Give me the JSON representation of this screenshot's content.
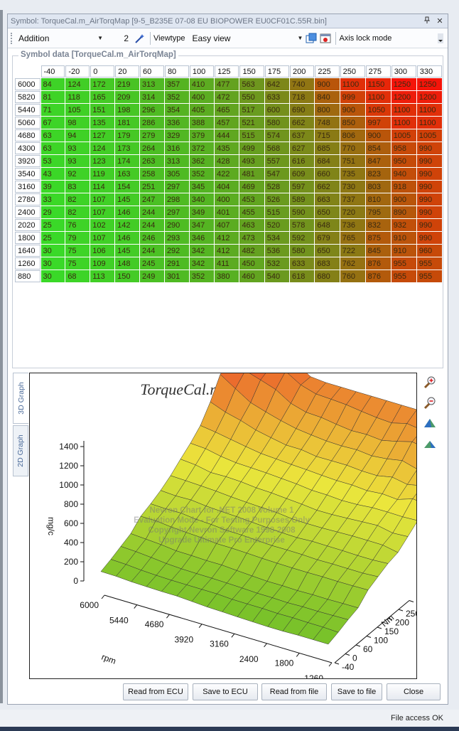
{
  "window": {
    "title": "Symbol: TorqueCal.m_AirTorqMap [9-5_B235E 07-08 EU BIOPOWER EU0CF01C.55R.bin]",
    "pin_icon": "pin-icon",
    "close_label": "✕"
  },
  "toolbar": {
    "mode_value": "Addition",
    "amount_value": "2",
    "viewtype_label": "Viewtype",
    "viewtype_value": "Easy view",
    "axis_lock_label": "Axis lock mode"
  },
  "symbol_data": {
    "legend": "Symbol data [TorqueCal.m_AirTorqMap]",
    "x_axis": [
      "-40",
      "-20",
      "0",
      "20",
      "60",
      "80",
      "100",
      "125",
      "150",
      "175",
      "200",
      "225",
      "250",
      "275",
      "300",
      "330"
    ],
    "y_axis": [
      "6000",
      "5820",
      "5440",
      "5060",
      "4680",
      "4300",
      "3920",
      "3540",
      "3160",
      "2780",
      "2400",
      "2020",
      "1800",
      "1640",
      "1260",
      "880"
    ],
    "rows": [
      [
        84,
        124,
        172,
        219,
        313,
        357,
        410,
        477,
        563,
        642,
        740,
        900,
        1100,
        1150,
        1250,
        1250
      ],
      [
        81,
        118,
        165,
        209,
        314,
        352,
        400,
        472,
        550,
        633,
        718,
        840,
        999,
        1100,
        1200,
        1200
      ],
      [
        71,
        105,
        151,
        198,
        296,
        354,
        405,
        465,
        517,
        600,
        690,
        800,
        900,
        1050,
        1100,
        1100
      ],
      [
        67,
        98,
        135,
        181,
        286,
        336,
        388,
        457,
        521,
        580,
        662,
        748,
        850,
        997,
        1100,
        1100
      ],
      [
        63,
        94,
        127,
        179,
        279,
        329,
        379,
        444,
        515,
        574,
        637,
        715,
        806,
        900,
        1005,
        1005
      ],
      [
        63,
        93,
        124,
        173,
        264,
        316,
        372,
        435,
        499,
        568,
        627,
        685,
        770,
        854,
        958,
        990
      ],
      [
        53,
        93,
        123,
        174,
        263,
        313,
        362,
        428,
        493,
        557,
        616,
        684,
        751,
        847,
        950,
        990
      ],
      [
        43,
        92,
        119,
        163,
        258,
        305,
        352,
        422,
        481,
        547,
        609,
        660,
        735,
        823,
        940,
        990
      ],
      [
        39,
        83,
        114,
        154,
        251,
        297,
        345,
        404,
        469,
        528,
        597,
        662,
        730,
        803,
        918,
        990
      ],
      [
        33,
        82,
        107,
        145,
        247,
        298,
        340,
        400,
        453,
        526,
        589,
        663,
        737,
        810,
        900,
        990
      ],
      [
        29,
        82,
        107,
        146,
        244,
        297,
        349,
        401,
        455,
        515,
        590,
        650,
        720,
        795,
        890,
        990
      ],
      [
        25,
        76,
        102,
        142,
        244,
        290,
        347,
        407,
        463,
        520,
        578,
        648,
        736,
        832,
        932,
        990
      ],
      [
        25,
        79,
        107,
        146,
        246,
        293,
        346,
        412,
        473,
        534,
        592,
        679,
        765,
        875,
        910,
        990
      ],
      [
        30,
        75,
        106,
        145,
        244,
        292,
        342,
        412,
        482,
        536,
        580,
        650,
        722,
        845,
        910,
        960
      ],
      [
        30,
        75,
        109,
        148,
        245,
        291,
        342,
        411,
        450,
        532,
        633,
        683,
        762,
        876,
        955,
        955
      ],
      [
        30,
        68,
        113,
        150,
        249,
        301,
        352,
        380,
        460,
        540,
        618,
        680,
        760,
        876,
        955,
        955
      ]
    ]
  },
  "graph": {
    "tabs": [
      {
        "label": "3D Graph"
      },
      {
        "label": "2D Graph"
      }
    ],
    "title": "TorqueCal.m_AirTorqMap",
    "z_ticks": [
      "1400",
      "1200",
      "1000",
      "800",
      "600",
      "400",
      "200",
      "0"
    ],
    "z_label": "mg/c",
    "rpm_ticks": [
      "6000",
      "5440",
      "4680",
      "3920",
      "3160",
      "2400",
      "1800",
      "1260"
    ],
    "rpm_label": "rpm",
    "nm_ticks": [
      "300",
      "250",
      "200",
      "150",
      "100",
      "60",
      "0",
      "-40"
    ],
    "nm_label": "Nm",
    "watermark_lines": [
      "Nevron Chart for .NET 2008 Volume 1",
      "Evaluation Mode - For Testing Purposes Only",
      "Copyright Nevron Software 1998-2008",
      "Upgrade Ultimate Pro Enterprise"
    ]
  },
  "buttons": {
    "read_ecu": "Read from ECU",
    "save_ecu": "Save to ECU",
    "read_file": "Read from file",
    "save_file": "Save to file",
    "close": "Close"
  },
  "status": {
    "text": "File access OK"
  }
}
